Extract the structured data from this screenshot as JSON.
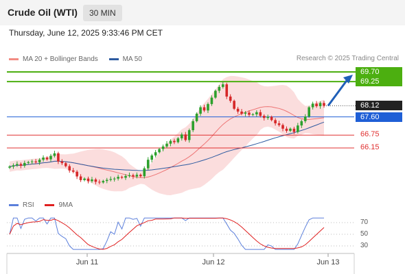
{
  "header": {
    "title": "Crude Oil (WTI)",
    "timeframe": "30 MIN"
  },
  "datetime": "Thursday, June 12, 2025 9:33:46 PM CET",
  "legend": [
    {
      "label": "MA 20 + Bollinger Bands",
      "color": "#f28b82"
    },
    {
      "label": "MA 50",
      "color": "#2d5aa0"
    }
  ],
  "credit": "Research © 2025 Trading Central",
  "rsi_legend": [
    {
      "label": "RSI",
      "color": "#5b7fdb"
    },
    {
      "label": "9MA",
      "color": "#e01f1f"
    }
  ],
  "levels": [
    {
      "value": 69.7,
      "label": "69.70",
      "color": "#4caf10",
      "kind": "resistance"
    },
    {
      "value": 69.25,
      "label": "69.25",
      "color": "#4caf10",
      "kind": "resistance"
    },
    {
      "value": 68.12,
      "label": "68.12",
      "color": "#222222",
      "kind": "last"
    },
    {
      "value": 67.6,
      "label": "67.60",
      "color": "#1f5fd6",
      "kind": "pivot"
    },
    {
      "value": 66.75,
      "label": "66.75",
      "color": "#e03030",
      "kind": "support"
    },
    {
      "value": 66.15,
      "label": "66.15",
      "color": "#e03030",
      "kind": "support"
    }
  ],
  "rsi_ticks": [
    "70",
    "50",
    "30"
  ],
  "x_ticks": [
    "Jun 11",
    "Jun 12",
    "Jun 13"
  ],
  "colors": {
    "up": "#2ca02c",
    "down": "#d62728",
    "band": "#f9c7c7",
    "ma20": "#ea5a5a",
    "ma50": "#2d5aa0",
    "arrow": "#1f5fb8"
  },
  "chart_data": {
    "type": "candlestick",
    "price_ylim": [
      64.1,
      69.9
    ],
    "rsi_ylim": [
      20,
      80
    ],
    "closes": [
      65.28,
      65.34,
      65.4,
      65.32,
      65.45,
      65.49,
      65.52,
      65.48,
      65.6,
      65.7,
      65.62,
      65.78,
      65.9,
      65.52,
      65.44,
      65.3,
      65.1,
      65.04,
      64.82,
      64.65,
      64.72,
      64.6,
      64.68,
      64.57,
      64.54,
      64.61,
      64.66,
      64.7,
      64.72,
      64.8,
      64.76,
      64.84,
      64.88,
      64.82,
      64.9,
      64.83,
      65.2,
      65.6,
      65.8,
      65.95,
      66.1,
      66.22,
      66.35,
      66.48,
      66.42,
      66.6,
      66.78,
      66.52,
      66.98,
      67.4,
      67.75,
      68.05,
      67.9,
      68.2,
      68.5,
      68.82,
      69.0,
      69.12,
      68.55,
      68.35,
      67.98,
      67.85,
      67.75,
      67.8,
      67.7,
      67.72,
      67.82,
      67.65,
      67.55,
      67.6,
      67.45,
      67.3,
      67.22,
      67.05,
      66.95,
      67.05,
      66.9,
      67.2,
      67.4,
      67.62,
      68.05,
      68.22,
      68.1,
      68.25,
      68.12
    ]
  }
}
